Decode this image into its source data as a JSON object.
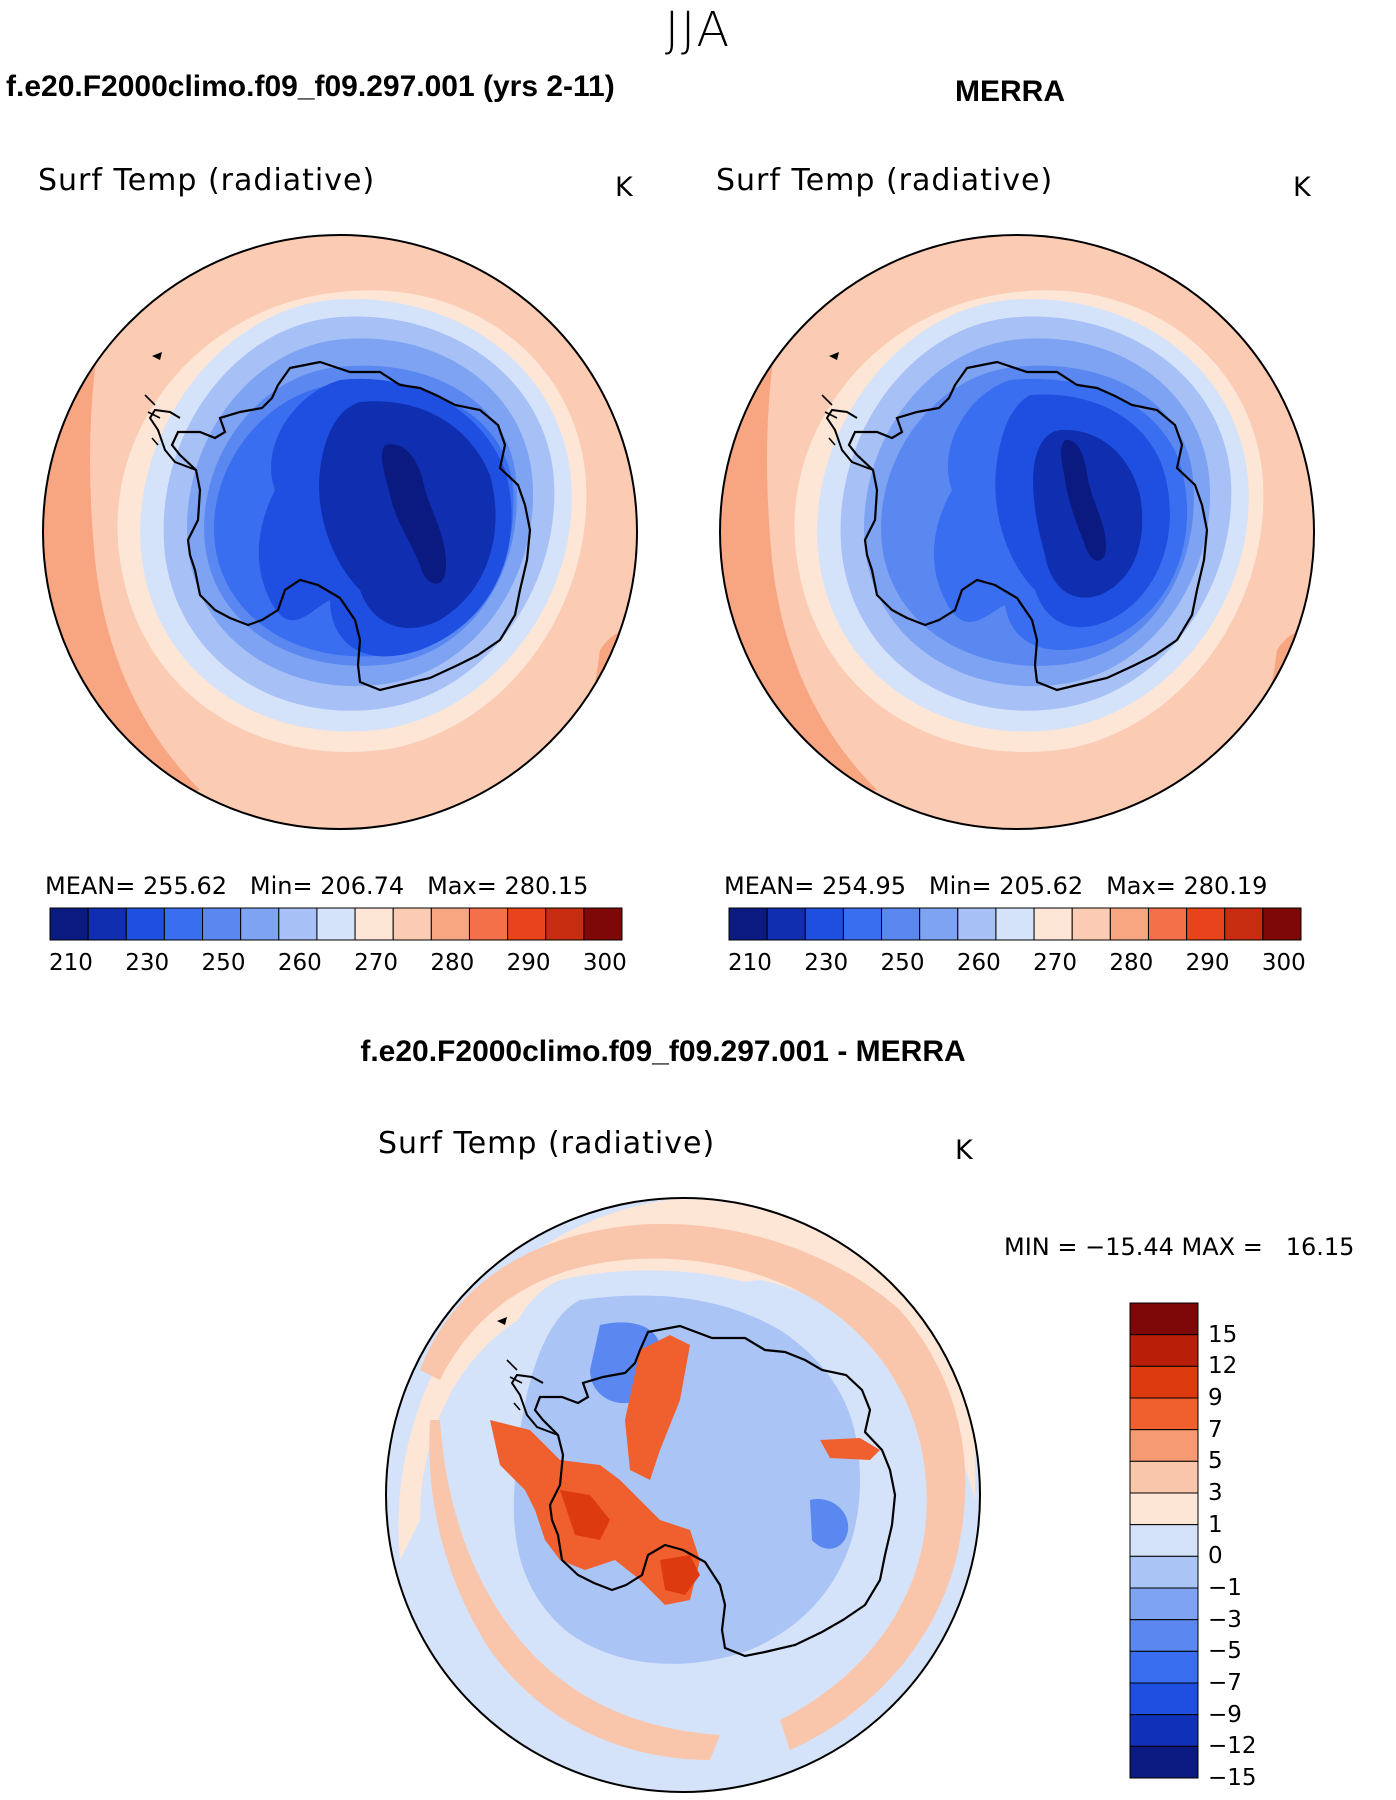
{
  "season": "JJA",
  "panels": [
    {
      "id": "model",
      "case_title": "f.e20.F2000climo.f09_f09.297.001 (yrs 2-11)",
      "var_title": "Surf Temp (radiative)",
      "units": "K",
      "stats": {
        "mean_label": "MEAN=",
        "mean": "255.62",
        "min_label": "Min=",
        "min": "206.74",
        "max_label": "Max=",
        "max": "280.15"
      }
    },
    {
      "id": "obs",
      "case_title": "MERRA",
      "var_title": "Surf Temp (radiative)",
      "units": "K",
      "stats": {
        "mean_label": "MEAN=",
        "mean": "254.95",
        "min_label": "Min=",
        "min": "205.62",
        "max_label": "Max=",
        "max": "280.19"
      }
    }
  ],
  "diff": {
    "case_title": "f.e20.F2000climo.f09_f09.297.001 - MERRA",
    "var_title": "Surf Temp (radiative)",
    "units": "K",
    "minmax": "MIN = −15.44 MAX =   16.15"
  },
  "abs_colorbar": {
    "colors": [
      "#0a1a80",
      "#0f2fb0",
      "#1f4fe0",
      "#3a6ef0",
      "#5a88f0",
      "#7ea3f2",
      "#a7c0f6",
      "#d5e3fa",
      "#fde6d6",
      "#fbcbb4",
      "#f8a582",
      "#f47048",
      "#e8431c",
      "#c82c10",
      "#7e0808"
    ],
    "tick_labels": [
      "210",
      "230",
      "250",
      "260",
      "270",
      "280",
      "290",
      "300"
    ]
  },
  "diff_colorbar": {
    "colors": [
      "#7e0808",
      "#b81e08",
      "#de3a10",
      "#f0602e",
      "#f59a72",
      "#f9c6ac",
      "#fde6d6",
      "#d5e3fa",
      "#a9c4f5",
      "#7ea3f2",
      "#5a88f0",
      "#3a6ef0",
      "#1f4fe0",
      "#0f30b8",
      "#0a1a80"
    ],
    "tick_labels": [
      "15",
      "12",
      "9",
      "7",
      "5",
      "3",
      "1",
      "0",
      "−1",
      "−3",
      "−5",
      "−7",
      "−9",
      "−12",
      "−15"
    ]
  },
  "map_colors": {
    "warm3": "#f8a582",
    "warm2": "#fbcbb4",
    "warm1": "#fde6d6",
    "cool1": "#d5e3fa",
    "cool2": "#a7c0f6",
    "cool3": "#7ea3f2",
    "cool4": "#5a88f0",
    "cool5": "#3a6ef0",
    "cool6": "#1f4fe0",
    "cool7": "#0f2fb0",
    "cool8": "#0a1a80",
    "dwarm1": "#fde6d6",
    "dwarm2": "#f9c6ac",
    "dwarm3": "#f0602e",
    "dwarm4": "#de3a10",
    "dcool1": "#d5e3fa",
    "dcool2": "#a9c4f5",
    "dcool3": "#5a88f0"
  }
}
